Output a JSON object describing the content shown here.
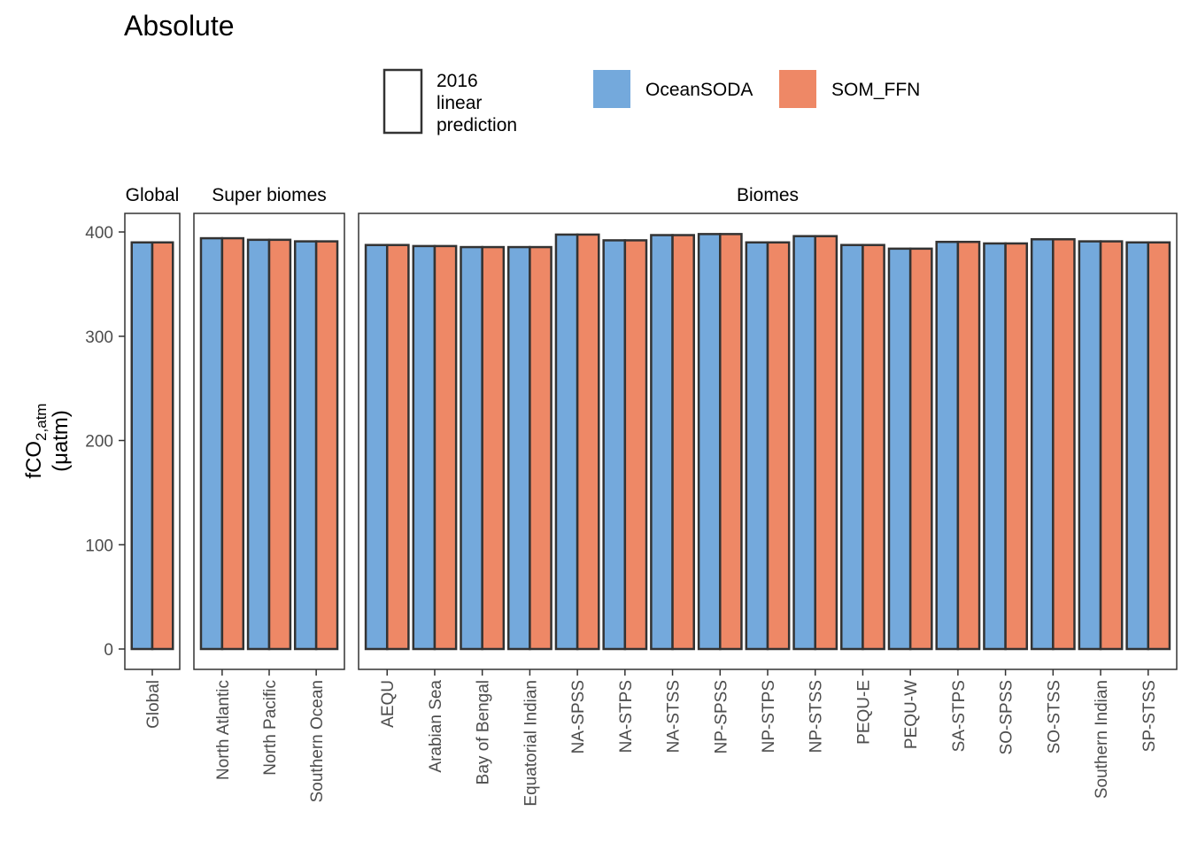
{
  "title": "Absolute",
  "legend": {
    "placement": "top",
    "outline_label": "2016\nlinear\nprediction",
    "fill_items": [
      {
        "name": "OceanSODA",
        "color": "#74a9dc"
      },
      {
        "name": "SOM_FFN",
        "color": "#ee8866"
      }
    ]
  },
  "chart_data": {
    "type": "bar",
    "ylabel_main": "fCO",
    "ylabel_sub": "2,atm",
    "ylabel_unit": "(μatm)",
    "ylim": [
      0,
      400
    ],
    "yticks": [
      0,
      100,
      200,
      300,
      400
    ],
    "grid": false,
    "series": [
      {
        "name": "OceanSODA",
        "color": "#74a9dc"
      },
      {
        "name": "SOM_FFN",
        "color": "#ee8866"
      }
    ],
    "panels": [
      {
        "label": "Global",
        "categories": [
          "Global"
        ],
        "values": {
          "OceanSODA": [
            390
          ],
          "SOM_FFN": [
            390
          ]
        }
      },
      {
        "label": "Super biomes",
        "categories": [
          "North Atlantic",
          "North Pacific",
          "Southern Ocean"
        ],
        "values": {
          "OceanSODA": [
            394,
            392.5,
            391
          ],
          "SOM_FFN": [
            394,
            392.5,
            391
          ]
        }
      },
      {
        "label": "Biomes",
        "categories": [
          "AEQU",
          "Arabian Sea",
          "Bay of Bengal",
          "Equatorial Indian",
          "NA-SPSS",
          "NA-STPS",
          "NA-STSS",
          "NP-SPSS",
          "NP-STPS",
          "NP-STSS",
          "PEQU-E",
          "PEQU-W",
          "SA-STPS",
          "SO-SPSS",
          "SO-STSS",
          "Southern Indian",
          "SP-STSS"
        ],
        "values": {
          "OceanSODA": [
            387.5,
            386.5,
            385.5,
            385.5,
            397.5,
            392,
            397,
            398,
            390,
            396,
            387.5,
            384,
            390.5,
            389,
            393,
            391,
            390
          ],
          "SOM_FFN": [
            387.5,
            386.5,
            385.5,
            385.5,
            397.5,
            392,
            397,
            398,
            390,
            396,
            387.5,
            384,
            390.5,
            389,
            393,
            391,
            390
          ]
        }
      }
    ]
  }
}
